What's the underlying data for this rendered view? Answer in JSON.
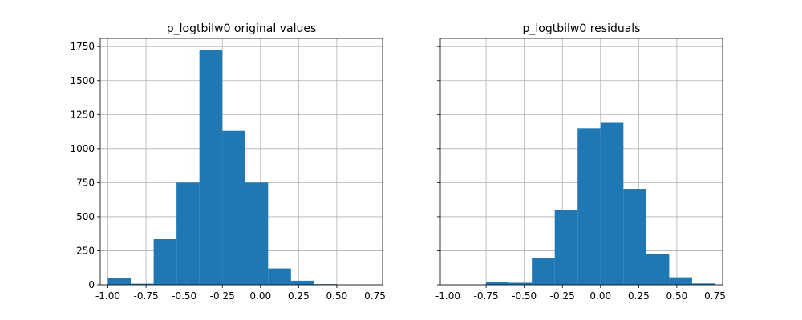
{
  "chart_data": [
    {
      "type": "bar",
      "subtype": "histogram",
      "title": "p_logtbilw0 original values",
      "bins": [
        {
          "x0": -1.0,
          "x1": -0.85,
          "value": 50
        },
        {
          "x0": -0.85,
          "x1": -0.7,
          "value": 8
        },
        {
          "x0": -0.7,
          "x1": -0.55,
          "value": 335
        },
        {
          "x0": -0.55,
          "x1": -0.4,
          "value": 750
        },
        {
          "x0": -0.4,
          "x1": -0.25,
          "value": 1725
        },
        {
          "x0": -0.25,
          "x1": -0.1,
          "value": 1130
        },
        {
          "x0": -0.1,
          "x1": 0.05,
          "value": 750
        },
        {
          "x0": 0.05,
          "x1": 0.2,
          "value": 120
        },
        {
          "x0": 0.2,
          "x1": 0.35,
          "value": 30
        },
        {
          "x0": 0.35,
          "x1": 0.5,
          "value": 5
        }
      ],
      "xlim": [
        -1.05,
        0.8
      ],
      "ylim": [
        0,
        1810
      ],
      "x_ticks": [
        "-1.00",
        "-0.75",
        "-0.50",
        "-0.25",
        "0.00",
        "0.25",
        "0.50",
        "0.75"
      ],
      "x_tick_values": [
        -1.0,
        -0.75,
        -0.5,
        -0.25,
        0.0,
        0.25,
        0.5,
        0.75
      ],
      "y_ticks": [
        "0",
        "250",
        "500",
        "750",
        "1000",
        "1250",
        "1500",
        "1750"
      ],
      "y_tick_values": [
        0,
        250,
        500,
        750,
        1000,
        1250,
        1500,
        1750
      ],
      "grid": true,
      "bar_color": "#1f77b4"
    },
    {
      "type": "bar",
      "subtype": "histogram",
      "title": "p_logtbilw0 residuals",
      "bins": [
        {
          "x0": -0.75,
          "x1": -0.6,
          "value": 22
        },
        {
          "x0": -0.6,
          "x1": -0.45,
          "value": 15
        },
        {
          "x0": -0.45,
          "x1": -0.3,
          "value": 195
        },
        {
          "x0": -0.3,
          "x1": -0.15,
          "value": 550
        },
        {
          "x0": -0.15,
          "x1": 0.0,
          "value": 1150
        },
        {
          "x0": 0.0,
          "x1": 0.15,
          "value": 1190
        },
        {
          "x0": 0.15,
          "x1": 0.3,
          "value": 705
        },
        {
          "x0": 0.3,
          "x1": 0.45,
          "value": 225
        },
        {
          "x0": 0.45,
          "x1": 0.6,
          "value": 55
        },
        {
          "x0": 0.6,
          "x1": 0.75,
          "value": 10
        }
      ],
      "xlim": [
        -1.05,
        0.8
      ],
      "ylim": [
        0,
        1810
      ],
      "x_ticks": [
        "-1.00",
        "-0.75",
        "-0.50",
        "-0.25",
        "0.00",
        "0.25",
        "0.50",
        "0.75"
      ],
      "x_tick_values": [
        -1.0,
        -0.75,
        -0.5,
        -0.25,
        0.0,
        0.25,
        0.5,
        0.75
      ],
      "y_ticks": [],
      "y_tick_values": [
        0,
        250,
        500,
        750,
        1000,
        1250,
        1500,
        1750
      ],
      "grid": true,
      "shared_y": true,
      "bar_color": "#1f77b4"
    }
  ]
}
